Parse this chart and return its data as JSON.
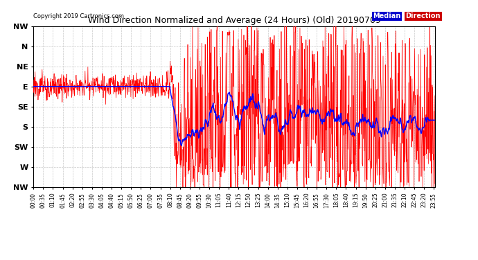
{
  "title": "Wind Direction Normalized and Average (24 Hours) (Old) 20190709",
  "copyright": "Copyright 2019 Cartronics.com",
  "y_labels_top_to_bottom": [
    "NW",
    "W",
    "SW",
    "S",
    "SE",
    "E",
    "NE",
    "N",
    "NW"
  ],
  "ylim": [
    0,
    8
  ],
  "background_color": "#ffffff",
  "grid_color": "#bbbbbb",
  "red_color": "#ff0000",
  "blue_color": "#0000ff",
  "dark_color": "#444444",
  "legend_median_bg": "#0000cc",
  "legend_direction_bg": "#cc0000",
  "legend_text_color": "#ffffff",
  "copyright_fontsize": 6,
  "title_fontsize": 9
}
